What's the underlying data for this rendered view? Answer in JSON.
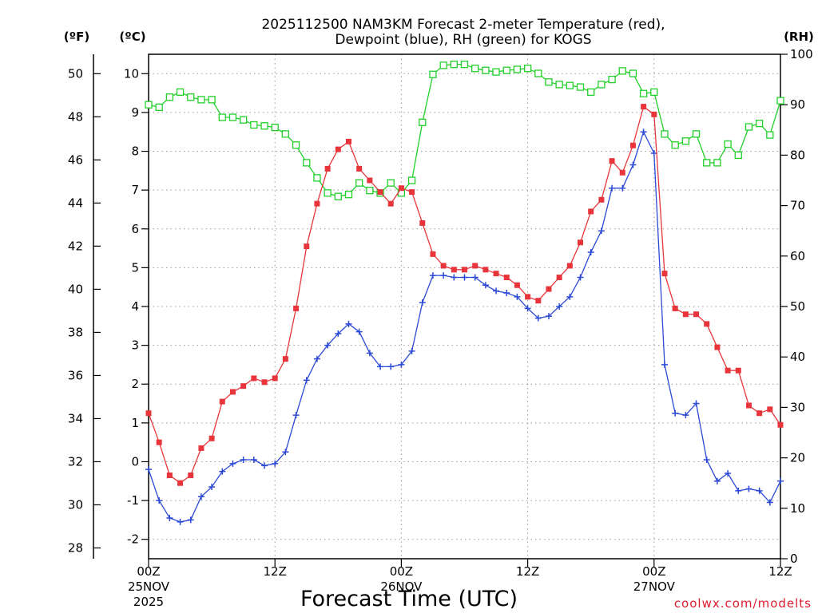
{
  "chart_data": {
    "type": "line",
    "title": [
      "2025112500 NAM3KM Forecast 2-meter Temperature (red),",
      "Dewpoint (blue), RH (green) for KOGS"
    ],
    "xlabel": "Forecast Time (UTC)",
    "credit": "coolwx.com/modelts",
    "units": {
      "left_f": "(ºF)",
      "left_c": "(ºC)",
      "right_rh": "(RH)"
    },
    "x_hours_range": [
      0,
      60
    ],
    "x_ticks": [
      {
        "hour": 0,
        "label": "00Z",
        "date": "25NOV",
        "year": "2025"
      },
      {
        "hour": 12,
        "label": "12Z",
        "date": "",
        "year": ""
      },
      {
        "hour": 24,
        "label": "00Z",
        "date": "26NOV",
        "year": ""
      },
      {
        "hour": 36,
        "label": "12Z",
        "date": "",
        "year": ""
      },
      {
        "hour": 48,
        "label": "00Z",
        "date": "27NOV",
        "year": ""
      },
      {
        "hour": 60,
        "label": "12Z",
        "date": "",
        "year": ""
      }
    ],
    "celsius_axis": {
      "range": [
        -2.5,
        10.5
      ],
      "ticks": [
        -2,
        -1,
        0,
        1,
        2,
        3,
        4,
        5,
        6,
        7,
        8,
        9,
        10
      ]
    },
    "fahrenheit_axis": {
      "ticks": [
        28,
        30,
        32,
        34,
        36,
        38,
        40,
        42,
        44,
        46,
        48,
        50
      ]
    },
    "rh_axis": {
      "range": [
        0,
        100
      ],
      "ticks": [
        0,
        10,
        20,
        30,
        40,
        50,
        60,
        70,
        80,
        90,
        100
      ]
    },
    "series": [
      {
        "name": "2-meter Temperature",
        "unit": "C",
        "color": "#e8353b",
        "marker": "filled-square",
        "x": [
          0,
          1,
          2,
          3,
          4,
          5,
          6,
          7,
          8,
          9,
          10,
          11,
          12,
          13,
          14,
          15,
          16,
          17,
          18,
          19,
          20,
          21,
          22,
          23,
          24,
          25,
          26,
          27,
          28,
          29,
          30,
          31,
          32,
          33,
          34,
          35,
          36,
          37,
          38,
          39,
          40,
          41,
          42,
          43,
          44,
          45,
          46,
          47,
          48,
          49,
          50,
          51,
          52,
          53,
          54,
          55,
          56,
          57,
          58,
          59,
          60
        ],
        "values": [
          1.25,
          0.5,
          -0.35,
          -0.55,
          -0.35,
          0.35,
          0.6,
          1.55,
          1.8,
          1.95,
          2.15,
          2.05,
          2.15,
          2.65,
          3.95,
          5.55,
          6.65,
          7.55,
          8.05,
          8.25,
          7.55,
          7.25,
          6.95,
          6.65,
          7.05,
          6.95,
          6.15,
          5.35,
          5.05,
          4.95,
          4.95,
          5.05,
          4.95,
          4.85,
          4.75,
          4.55,
          4.25,
          4.15,
          4.45,
          4.75,
          5.05,
          5.65,
          6.45,
          6.75,
          7.75,
          7.45,
          8.15,
          9.15,
          8.95,
          4.85,
          3.95,
          3.8,
          3.8,
          3.55,
          2.95,
          2.35,
          2.35,
          1.45,
          1.25,
          1.35,
          0.95
        ]
      },
      {
        "name": "Dewpoint",
        "unit": "C",
        "color": "#2b49d6",
        "marker": "plus",
        "x": [
          0,
          1,
          2,
          3,
          4,
          5,
          6,
          7,
          8,
          9,
          10,
          11,
          12,
          13,
          14,
          15,
          16,
          17,
          18,
          19,
          20,
          21,
          22,
          23,
          24,
          25,
          26,
          27,
          28,
          29,
          30,
          31,
          32,
          33,
          34,
          35,
          36,
          37,
          38,
          39,
          40,
          41,
          42,
          43,
          44,
          45,
          46,
          47,
          48,
          49,
          50,
          51,
          52,
          53,
          54,
          55,
          56,
          57,
          58,
          59,
          60
        ],
        "values": [
          -0.2,
          -1.0,
          -1.45,
          -1.55,
          -1.5,
          -0.9,
          -0.65,
          -0.25,
          -0.05,
          0.05,
          0.05,
          -0.1,
          -0.05,
          0.25,
          1.2,
          2.1,
          2.65,
          3.0,
          3.3,
          3.55,
          3.35,
          2.8,
          2.45,
          2.45,
          2.5,
          2.85,
          4.1,
          4.8,
          4.8,
          4.75,
          4.75,
          4.75,
          4.55,
          4.4,
          4.35,
          4.25,
          3.95,
          3.7,
          3.75,
          4.0,
          4.25,
          4.75,
          5.4,
          5.95,
          7.05,
          7.05,
          7.65,
          8.5,
          7.95,
          2.5,
          1.25,
          1.2,
          1.5,
          0.05,
          -0.5,
          -0.3,
          -0.75,
          -0.7,
          -0.75,
          -1.05,
          -0.5
        ]
      },
      {
        "name": "RH",
        "unit": "%",
        "color": "#22d02a",
        "marker": "open-square",
        "x": [
          0,
          1,
          2,
          3,
          4,
          5,
          6,
          7,
          8,
          9,
          10,
          11,
          12,
          13,
          14,
          15,
          16,
          17,
          18,
          19,
          20,
          21,
          22,
          23,
          24,
          25,
          26,
          27,
          28,
          29,
          30,
          31,
          32,
          33,
          34,
          35,
          36,
          37,
          38,
          39,
          40,
          41,
          42,
          43,
          44,
          45,
          46,
          47,
          48,
          49,
          50,
          51,
          52,
          53,
          54,
          55,
          56,
          57,
          58,
          59,
          60
        ],
        "values": [
          90,
          89.5,
          91.5,
          92.5,
          91.5,
          91,
          91,
          87.5,
          87.5,
          87,
          86,
          85.8,
          85.5,
          84.2,
          82,
          78.5,
          75.5,
          72.5,
          71.8,
          72.2,
          74.5,
          73,
          72.5,
          74.5,
          72.5,
          75,
          86.5,
          96,
          97.8,
          98,
          98,
          97.2,
          96.8,
          96.5,
          96.8,
          97,
          97.2,
          96.2,
          94.5,
          94,
          93.8,
          93.5,
          92.5,
          94,
          95,
          96.7,
          96.2,
          92.2,
          92.5,
          84.2,
          82,
          82.8,
          84.2,
          78.5,
          78.5,
          82.2,
          80,
          85.6,
          86.3,
          84,
          90.8
        ]
      }
    ]
  }
}
